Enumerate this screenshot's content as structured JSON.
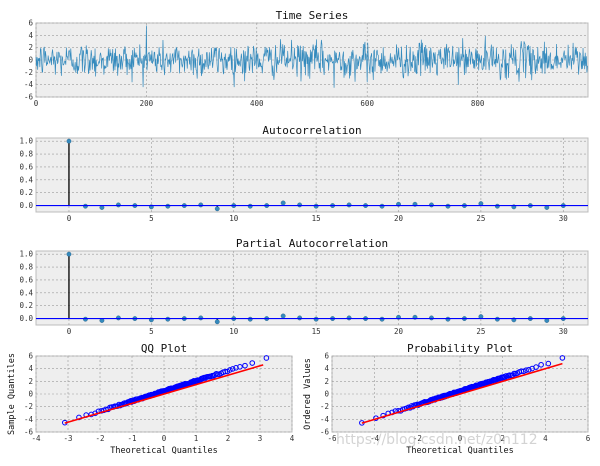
{
  "chart_data": [
    {
      "type": "line",
      "title": "Time Series",
      "xlim": [
        0,
        1000
      ],
      "ylim": [
        -6,
        6
      ],
      "xticks": [
        0,
        200,
        400,
        600,
        800
      ],
      "yticks": [
        -6,
        -4,
        -2,
        0,
        2,
        4,
        6
      ],
      "grid": true,
      "color": "#348abd",
      "n_points": 1000,
      "series": [
        {
          "x": [
            0,
            50,
            100,
            150,
            200,
            250,
            300,
            350,
            400,
            450,
            500,
            550,
            600,
            650,
            700,
            750,
            800,
            850,
            900,
            950,
            1000
          ],
          "y": [
            0.5,
            -0.8,
            1.6,
            -1.2,
            2.1,
            0.3,
            -2.6,
            1.0,
            -1.5,
            2.4,
            -0.6,
            1.3,
            -3.6,
            0.9,
            2.8,
            -1.1,
            0.2,
            -2.9,
            1.7,
            -0.4,
            0.6
          ]
        }
      ],
      "range_extremes": {
        "max": 5.6,
        "min": -4.5
      }
    },
    {
      "type": "stem",
      "title": "Autocorrelation",
      "xlim": [
        -2,
        31.5
      ],
      "ylim": [
        -0.1,
        1.05
      ],
      "xticks": [
        0,
        5,
        10,
        15,
        20,
        25,
        30
      ],
      "yticks": [
        0.0,
        0.2,
        0.4,
        0.6,
        0.8,
        1.0
      ],
      "grid": true,
      "lags": [
        0,
        1,
        2,
        3,
        4,
        5,
        6,
        7,
        8,
        9,
        10,
        11,
        12,
        13,
        14,
        15,
        16,
        17,
        18,
        19,
        20,
        21,
        22,
        23,
        24,
        25,
        26,
        27,
        28,
        29,
        30
      ],
      "values": [
        1.0,
        -0.01,
        -0.03,
        0.01,
        0.0,
        -0.02,
        -0.01,
        0.0,
        0.01,
        -0.05,
        0.0,
        -0.01,
        0.0,
        0.04,
        0.01,
        -0.01,
        0.0,
        0.01,
        0.0,
        -0.01,
        0.02,
        0.02,
        0.01,
        -0.01,
        0.0,
        0.03,
        -0.01,
        -0.02,
        0.0,
        -0.03,
        0.0
      ]
    },
    {
      "type": "stem",
      "title": "Partial Autocorrelation",
      "xlim": [
        -2,
        31.5
      ],
      "ylim": [
        -0.1,
        1.05
      ],
      "xticks": [
        0,
        5,
        10,
        15,
        20,
        25,
        30
      ],
      "yticks": [
        0.0,
        0.2,
        0.4,
        0.6,
        0.8,
        1.0
      ],
      "grid": true,
      "lags": [
        0,
        1,
        2,
        3,
        4,
        5,
        6,
        7,
        8,
        9,
        10,
        11,
        12,
        13,
        14,
        15,
        16,
        17,
        18,
        19,
        20,
        21,
        22,
        23,
        24,
        25,
        26,
        27,
        28,
        29,
        30
      ],
      "values": [
        1.0,
        -0.01,
        -0.03,
        0.01,
        0.0,
        -0.02,
        -0.01,
        0.0,
        0.01,
        -0.05,
        0.0,
        -0.01,
        0.0,
        0.04,
        0.01,
        -0.01,
        0.0,
        0.01,
        0.0,
        -0.01,
        0.02,
        0.02,
        0.01,
        -0.01,
        0.0,
        0.03,
        -0.01,
        -0.02,
        0.0,
        -0.03,
        0.0
      ]
    },
    {
      "type": "scatter",
      "title": "QQ Plot",
      "xlabel": "Theoretical Quantiles",
      "ylabel": "Sample Quantiles",
      "xlim": [
        -4,
        4
      ],
      "ylim": [
        -6,
        6
      ],
      "xticks": [
        -4,
        -3,
        -2,
        -1,
        0,
        1,
        2,
        3,
        4
      ],
      "yticks": [
        -6,
        -4,
        -2,
        0,
        2,
        4,
        6
      ],
      "grid": true,
      "point_range": [
        [
          -3.1,
          -4.5
        ],
        [
          3.2,
          5.6
        ]
      ],
      "fit_line": [
        [
          -3.1,
          -4.6
        ],
        [
          3.1,
          4.6
        ]
      ],
      "point_color": "#0000ff",
      "line_color": "#ff0000"
    },
    {
      "type": "scatter",
      "title": "Probability Plot",
      "xlabel": "Theoretical Quantiles",
      "ylabel": "Ordered Values",
      "xlim": [
        -6,
        6
      ],
      "ylim": [
        -6,
        6
      ],
      "xticks": [
        -6,
        -4,
        -2,
        0,
        2,
        4,
        6
      ],
      "yticks": [
        -6,
        -4,
        -2,
        0,
        2,
        4,
        6
      ],
      "grid": true,
      "point_range": [
        [
          -4.6,
          -4.5
        ],
        [
          4.8,
          5.6
        ]
      ],
      "fit_line": [
        [
          -4.6,
          -4.6
        ],
        [
          4.8,
          4.8
        ]
      ],
      "point_color": "#0000ff",
      "line_color": "#ff0000"
    }
  ],
  "watermark": "https://blog.csdn.net/z0n112"
}
